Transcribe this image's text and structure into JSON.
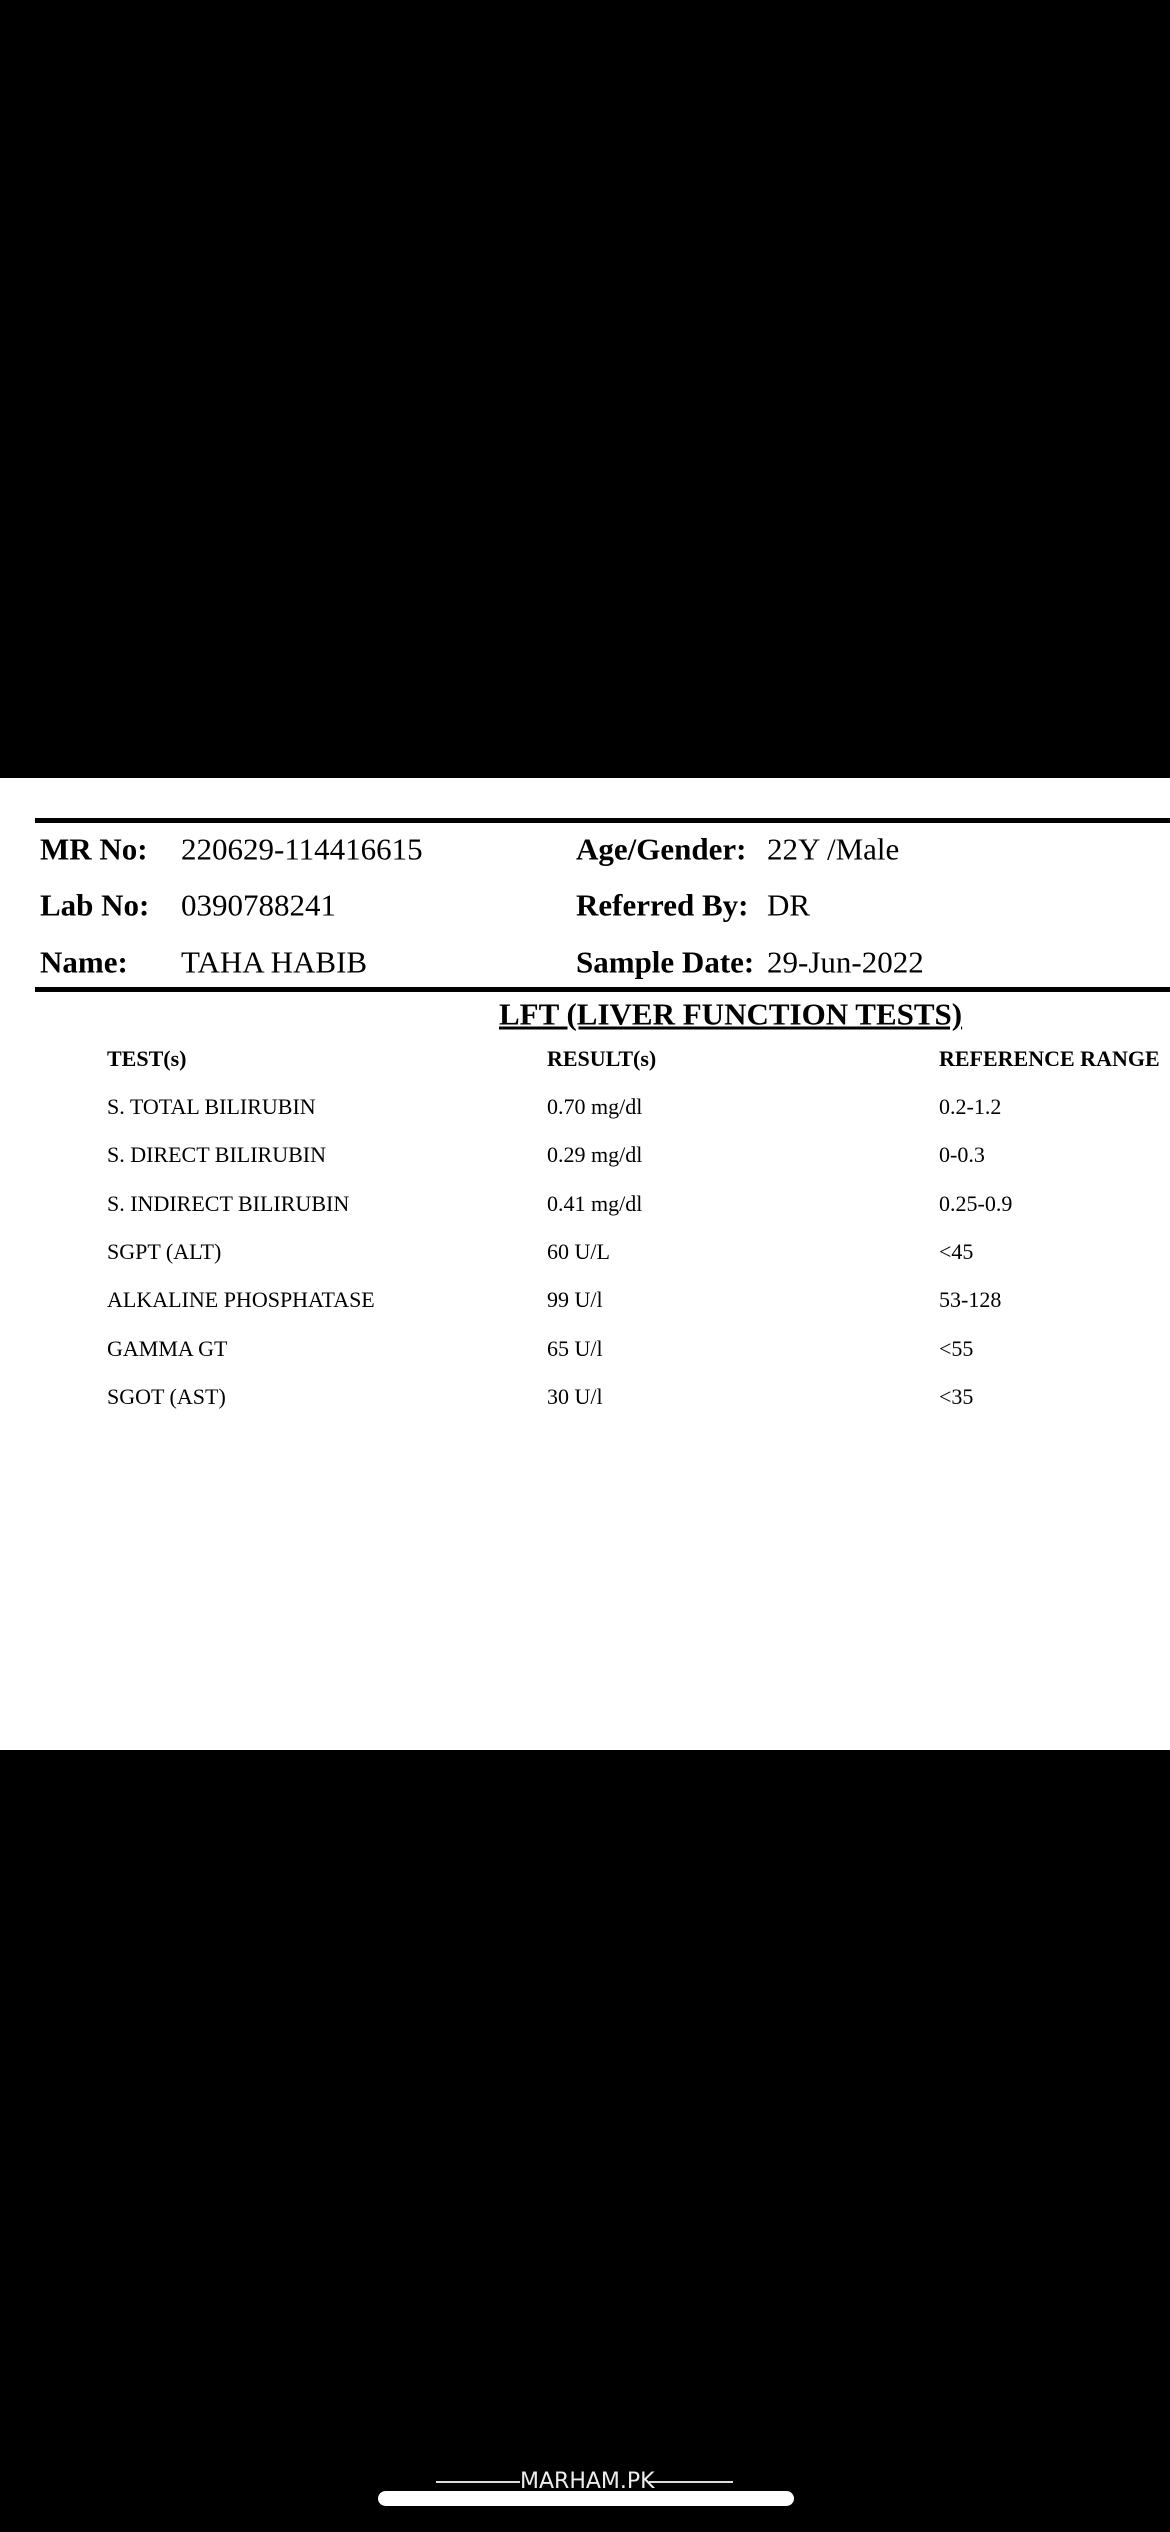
{
  "patient": {
    "mr_label": "MR No:",
    "mr_value": "220629-114416615",
    "lab_label": "Lab No:",
    "lab_value": "0390788241",
    "name_label": "Name:",
    "name_value": "TAHA HABIB",
    "age_label": "Age/Gender:",
    "age_value": "22Y /Male",
    "ref_label": "Referred By:",
    "ref_value": "DR",
    "date_label": "Sample Date:",
    "date_value": "29-Jun-2022"
  },
  "report": {
    "title": "LFT (LIVER FUNCTION TESTS)",
    "headers": [
      "TEST(s)",
      "RESULT(s)",
      "REFERENCE RANGE"
    ],
    "rows": [
      [
        "S. TOTAL BILIRUBIN",
        "0.70 mg/dl",
        "0.2-1.2"
      ],
      [
        "S. DIRECT BILIRUBIN",
        "0.29 mg/dl",
        "0-0.3"
      ],
      [
        "S. INDIRECT BILIRUBIN",
        "0.41 mg/dl",
        "0.25-0.9"
      ],
      [
        "SGPT (ALT)",
        "60 U/L",
        "<45"
      ],
      [
        "ALKALINE PHOSPHATASE",
        "99 U/l",
        "53-128"
      ],
      [
        "GAMMA GT",
        "65 U/l",
        "<55"
      ],
      [
        "SGOT (AST)",
        "30 U/l",
        "<35"
      ]
    ]
  },
  "footer": {
    "brand": "MARHAM.PK"
  }
}
